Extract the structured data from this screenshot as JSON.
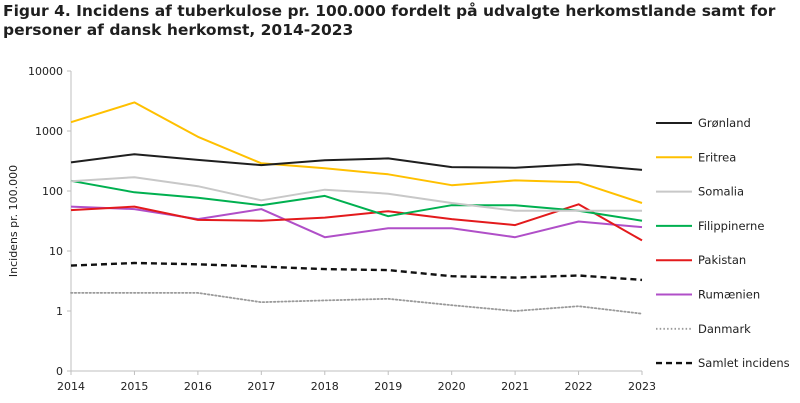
{
  "chart_data": {
    "type": "line",
    "title": "Figur 4. Incidens af tuberkulose pr. 100.000 fordelt på udvalgte herkomstlande samt for personer af dansk herkomst, 2014-2023",
    "ylabel": "Incidens pr. 100.000",
    "xlabel": "",
    "y_scale": "log",
    "y_ticks": [
      0,
      1,
      10,
      100,
      1000,
      10000
    ],
    "y_tick_labels": [
      "0",
      "1",
      "10",
      "100",
      "1000",
      "10000"
    ],
    "legend_position": "right",
    "grid": false,
    "x": [
      "2014",
      "2015",
      "2016",
      "2017",
      "2018",
      "2019",
      "2020",
      "2021",
      "2022",
      "2023"
    ],
    "series": [
      {
        "name": "Grønland",
        "color": "#1f1f1f",
        "dash": "solid",
        "values": [
          300,
          410,
          330,
          270,
          325,
          350,
          250,
          245,
          280,
          225
        ]
      },
      {
        "name": "Eritrea",
        "color": "#ffc000",
        "dash": "solid",
        "values": [
          1400,
          3000,
          800,
          290,
          240,
          190,
          125,
          150,
          140,
          63
        ]
      },
      {
        "name": "Somalia",
        "color": "#c8c8c8",
        "dash": "solid",
        "values": [
          145,
          170,
          120,
          70,
          105,
          90,
          63,
          47,
          47,
          47
        ]
      },
      {
        "name": "Filippinerne",
        "color": "#00b050",
        "dash": "solid",
        "values": [
          148,
          95,
          77,
          58,
          83,
          38,
          58,
          58,
          47,
          32
        ]
      },
      {
        "name": "Pakistan",
        "color": "#e31a1c",
        "dash": "solid",
        "values": [
          48,
          55,
          33,
          32,
          36,
          46,
          34,
          27,
          60,
          15
        ]
      },
      {
        "name": "Rumænien",
        "color": "#b04fc8",
        "dash": "solid",
        "values": [
          55,
          50,
          34,
          50,
          17,
          24,
          24,
          17,
          31,
          25
        ]
      },
      {
        "name": "Danmark",
        "color": "#9a9a9a",
        "dash": "dotted",
        "values": [
          2.0,
          2.0,
          2.0,
          1.4,
          1.5,
          1.6,
          1.25,
          1.0,
          1.2,
          0.9
        ]
      },
      {
        "name": "Samlet incidens",
        "color": "#111111",
        "dash": "dashed",
        "values": [
          5.7,
          6.3,
          6.0,
          5.5,
          5.0,
          4.8,
          3.8,
          3.6,
          3.9,
          3.3
        ]
      }
    ]
  }
}
